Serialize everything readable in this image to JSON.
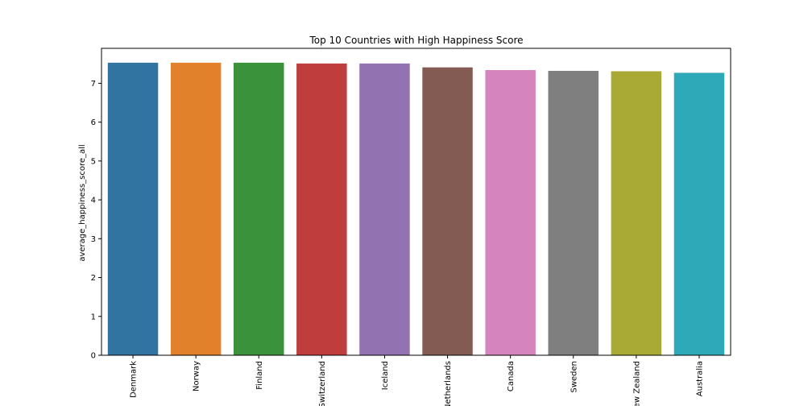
{
  "chart_data": {
    "type": "bar",
    "title": "Top 10 Countries with High Happiness Score",
    "xlabel": "",
    "ylabel": "average_happiness_score_all",
    "categories": [
      "Denmark",
      "Norway",
      "Finland",
      "Switzerland",
      "Iceland",
      "Netherlands",
      "Canada",
      "Sweden",
      "New Zealand",
      "Australia"
    ],
    "values": [
      7.53,
      7.53,
      7.53,
      7.51,
      7.51,
      7.41,
      7.34,
      7.32,
      7.31,
      7.27
    ],
    "colors": [
      "#3274a1",
      "#e1812c",
      "#3a923a",
      "#c03d3e",
      "#9372b2",
      "#845b53",
      "#d684bd",
      "#7f7f7f",
      "#a9aa35",
      "#2ea9b7"
    ],
    "ylim": [
      0,
      7.9
    ],
    "yticks": [
      0,
      1,
      2,
      3,
      4,
      5,
      6,
      7
    ],
    "grid": false,
    "legend": "none"
  }
}
